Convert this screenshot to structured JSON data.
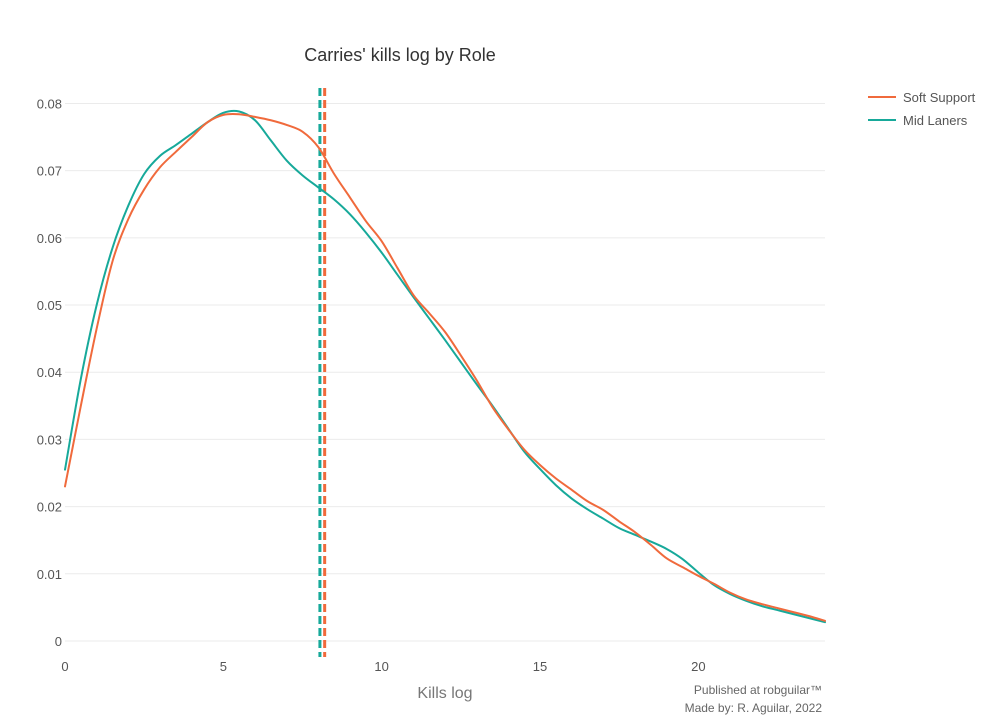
{
  "chart_data": {
    "type": "line",
    "title": "Carries' kills log by Role",
    "xlabel": "Kills log",
    "ylabel": "",
    "xlim": [
      0,
      24
    ],
    "ylim": [
      0,
      0.082
    ],
    "x_ticks": [
      0,
      5,
      10,
      15,
      20
    ],
    "y_ticks": [
      0,
      0.01,
      0.02,
      0.03,
      0.04,
      0.05,
      0.06,
      0.07,
      0.08
    ],
    "x_tick_labels": [
      "0",
      "5",
      "10",
      "15",
      "20"
    ],
    "y_tick_labels": [
      "0",
      "0.01",
      "0.02",
      "0.03",
      "0.04",
      "0.05",
      "0.06",
      "0.07",
      "0.08"
    ],
    "grid": true,
    "legend_position": "top-right",
    "series": [
      {
        "name": "Soft Support",
        "color": "#f06a3c",
        "x": [
          0,
          0.5,
          1,
          1.5,
          2,
          2.5,
          3,
          3.5,
          4,
          4.5,
          5,
          5.5,
          6,
          6.5,
          7,
          7.5,
          8,
          8.5,
          9,
          9.5,
          10,
          10.5,
          11,
          11.5,
          12,
          12.5,
          13,
          13.5,
          14,
          14.5,
          15,
          15.5,
          16,
          16.5,
          17,
          17.5,
          18,
          18.5,
          19,
          19.5,
          20,
          20.5,
          21,
          21.5,
          22,
          22.5,
          23,
          23.5,
          24
        ],
        "y": [
          0.023,
          0.035,
          0.0465,
          0.0565,
          0.0628,
          0.0672,
          0.0705,
          0.0728,
          0.075,
          0.0772,
          0.0783,
          0.0784,
          0.078,
          0.0775,
          0.0768,
          0.0758,
          0.0735,
          0.0695,
          0.066,
          0.0625,
          0.0595,
          0.0555,
          0.0515,
          0.0488,
          0.046,
          0.0425,
          0.0388,
          0.0348,
          0.0315,
          0.0285,
          0.0262,
          0.0242,
          0.0225,
          0.0208,
          0.0195,
          0.0178,
          0.0162,
          0.0143,
          0.0123,
          0.011,
          0.0097,
          0.0085,
          0.0072,
          0.0062,
          0.0055,
          0.0049,
          0.0043,
          0.0037,
          0.003
        ]
      },
      {
        "name": "Mid Laners",
        "color": "#17a99a",
        "x": [
          0,
          0.5,
          1,
          1.5,
          2,
          2.5,
          3,
          3.5,
          4,
          4.5,
          5,
          5.5,
          6,
          6.5,
          7,
          7.5,
          8,
          8.5,
          9,
          9.5,
          10,
          10.5,
          11,
          11.5,
          12,
          12.5,
          13,
          13.5,
          14,
          14.5,
          15,
          15.5,
          16,
          16.5,
          17,
          17.5,
          18,
          18.5,
          19,
          19.5,
          20,
          20.5,
          21,
          21.5,
          22,
          22.5,
          23,
          23.5,
          24
        ],
        "y": [
          0.0255,
          0.039,
          0.05,
          0.0585,
          0.0648,
          0.0695,
          0.0722,
          0.0738,
          0.0755,
          0.0772,
          0.0786,
          0.0788,
          0.0775,
          0.0745,
          0.0715,
          0.0693,
          0.0675,
          0.0657,
          0.0635,
          0.0608,
          0.0578,
          0.0545,
          0.0512,
          0.048,
          0.0448,
          0.0415,
          0.0382,
          0.035,
          0.0316,
          0.0282,
          0.0256,
          0.0232,
          0.0212,
          0.0196,
          0.0182,
          0.0168,
          0.0158,
          0.0148,
          0.0137,
          0.0122,
          0.0102,
          0.0083,
          0.007,
          0.006,
          0.0052,
          0.0046,
          0.004,
          0.0034,
          0.0028
        ]
      }
    ],
    "vlines": [
      {
        "x": 8.05,
        "color": "#17a99a",
        "style": "dashed"
      },
      {
        "x": 8.2,
        "color": "#f06a3c",
        "style": "dashed"
      }
    ]
  },
  "footer": {
    "line1": "Published at robguilar™",
    "line2": "Made by:  R. Aguilar, 2022"
  }
}
